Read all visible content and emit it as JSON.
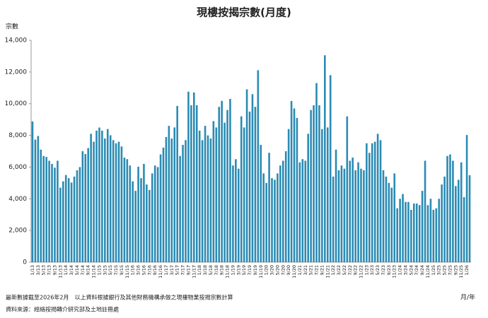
{
  "chart_data": {
    "type": "bar",
    "title": "現樓按揭宗數(月度)",
    "y_label": "宗數",
    "x_label": "月/年",
    "notes": [
      "最新數據截至2026年2月　以上資料根據銀行及其他財務機構承做之現樓物業按揭宗數計算",
      "資料來源：經絡按揭轉介研究部及土地註冊處"
    ],
    "color": "#2b8bb3",
    "categories": [
      "1/13",
      null,
      "3/13",
      null,
      "5/13",
      null,
      "7/13",
      null,
      "9/13",
      null,
      "11/13",
      null,
      "1/14",
      null,
      "3/14",
      null,
      "5/14",
      null,
      "7/14",
      null,
      "9/14",
      null,
      "11/14",
      null,
      "1/15",
      null,
      "3/15",
      null,
      "5/15",
      null,
      "7/15",
      null,
      "9/15",
      null,
      "11/15",
      null,
      "1/16",
      null,
      "3/16",
      null,
      "5/16",
      null,
      "7/16",
      null,
      "9/16",
      null,
      "11/16",
      null,
      "1/17",
      null,
      "3/17",
      null,
      "5/17",
      null,
      "7/17",
      null,
      "9/17",
      null,
      "11/17",
      null,
      "1/18",
      null,
      "3/18",
      null,
      "5/18",
      null,
      "7/18",
      null,
      "9/18",
      null,
      "11/18",
      null,
      "1/19",
      null,
      "3/19",
      null,
      "5/19",
      null,
      "7/19",
      null,
      "9/19",
      null,
      "11/19",
      null,
      "1/20",
      null,
      "3/20",
      null,
      "5/20",
      null,
      "7/20",
      null,
      "9/20",
      null,
      "11/20",
      null,
      "1/21",
      null,
      "3/21",
      null,
      "5/21",
      null,
      "7/21",
      null,
      "9/21",
      null,
      "11/21",
      null,
      "1/22",
      null,
      "3/22",
      null,
      "5/22",
      null,
      "7/22",
      null,
      "9/22",
      null,
      "11/22",
      null,
      "1/23",
      null,
      "3/23",
      null,
      "5/23",
      null,
      "7/23",
      null,
      "9/23",
      null,
      "11/23",
      null,
      "1/24",
      null,
      "3/24",
      null,
      "5/24",
      null,
      "7/24",
      null,
      "9/24",
      null,
      "11/24",
      null,
      "1/25",
      null,
      "3/25",
      null,
      "5/25",
      null,
      "7/25",
      null,
      "9/25",
      null,
      "11/25",
      null,
      "1/26",
      null
    ],
    "values": [
      8879,
      7731,
      7964,
      7100,
      6697,
      6637,
      6400,
      6200,
      5964,
      6400,
      4700,
      5100,
      5500,
      5300,
      5023,
      5400,
      5796,
      6000,
      7000,
      6826,
      7200,
      8100,
      7600,
      8300,
      8494,
      8300,
      7800,
      8400,
      8007,
      7700,
      7500,
      7600,
      7300,
      6600,
      6500,
      6100,
      5100,
      4500,
      6020,
      5300,
      6200,
      4900,
      4556,
      5600,
      6100,
      6000,
      6800,
      7229,
      7900,
      8600,
      7800,
      8500,
      9858,
      6700,
      7400,
      7700,
      10758,
      9900,
      10709,
      9900,
      8300,
      7700,
      8600,
      8000,
      7800,
      8900,
      8500,
      9800,
      10177,
      8800,
      9600,
      10300,
      6100,
      6500,
      5900,
      9200,
      8500,
      10906,
      9500,
      10600,
      9800,
      12110,
      7400,
      5600,
      5000,
      6900,
      5300,
      5200,
      5600,
      6100,
      6400,
      7000,
      8400,
      10172,
      9700,
      9100,
      6300,
      6500,
      6400,
      8100,
      9600,
      9900,
      11300,
      9900,
      8400,
      13054,
      8500,
      11800,
      5400,
      7100,
      5800,
      6100,
      5900,
      9200,
      6400,
      6600,
      5800,
      6300,
      5900,
      5800,
      7500,
      6900,
      7500,
      7600,
      8100,
      7700,
      5800,
      5400,
      5000,
      4700,
      5600,
      3400,
      4000,
      4300,
      3800,
      3800,
      3300,
      3700,
      3700,
      3600,
      4500,
      6400,
      3600,
      4000,
      3300,
      3400,
      4000,
      4900,
      5400,
      6700,
      6800,
      6400,
      4800,
      5200,
      6300,
      4100,
      8022,
      5484
    ],
    "ylim": [
      0,
      14000
    ],
    "yticks": [
      0,
      {
        "value": 2000,
        "label": "2,000"
      },
      {
        "value": 4000,
        "label": "4,000"
      },
      {
        "value": 6000,
        "label": "6,000"
      },
      {
        "value": 8000,
        "label": "8,000"
      },
      {
        "value": 10000,
        "label": "10,000"
      },
      {
        "value": 12000,
        "label": "12,000"
      },
      {
        "value": 14000,
        "label": "14,000"
      }
    ]
  }
}
